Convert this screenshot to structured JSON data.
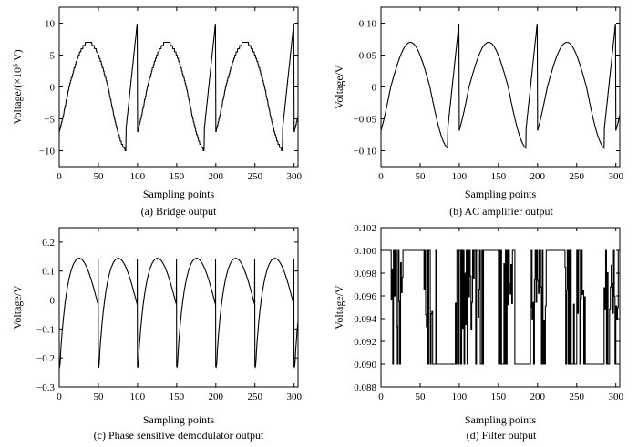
{
  "chart_data": [
    {
      "id": "a",
      "type": "line",
      "caption": "(a) Bridge output",
      "xlabel": "Sampling points",
      "ylabel": "Voltage/(×10⁵ V)",
      "xlim": [
        0,
        305
      ],
      "ylim": [
        -12.5,
        12.5
      ],
      "xticks": [
        0,
        50,
        100,
        150,
        200,
        250,
        300
      ],
      "yticks": [
        -10,
        -5,
        0,
        5,
        10
      ],
      "ytick_labels": [
        "−10",
        "−5",
        "0",
        "5",
        "10"
      ],
      "signal": {
        "shape": "ramp-sine",
        "amplitude": 7.0,
        "period": 100,
        "phase_deg": -45,
        "peak_after_reset": 10.5,
        "reset_to": -5,
        "clip": 10,
        "plateau_step": 0.5
      },
      "series": [
        {
          "values_desc": "sinusoid with plateaus at ±7/±10 and sharp resets at 100 and 200"
        }
      ]
    },
    {
      "id": "b",
      "type": "line",
      "caption": "(b) AC amplifier output",
      "xlabel": "Sampling points",
      "ylabel": "Voltage/V",
      "xlim": [
        0,
        305
      ],
      "ylim": [
        -0.125,
        0.125
      ],
      "xticks": [
        0,
        50,
        100,
        150,
        200,
        250,
        300
      ],
      "yticks": [
        -0.1,
        -0.05,
        0,
        0.05,
        0.1
      ],
      "ytick_labels": [
        "−0.10",
        "−0.05",
        "0",
        "0.05",
        "0.10"
      ],
      "signal": {
        "shape": "ramp-sine",
        "amplitude": 0.07,
        "trough": -0.097,
        "period": 100,
        "phase_deg": -45,
        "peak_after_reset": 0.105,
        "reset_to": -0.05
      },
      "series": [
        {
          "values_desc": "smooth sinusoid with resets at 100 and 200"
        }
      ]
    },
    {
      "id": "c",
      "type": "line",
      "caption": "(c) Phase sensitive demodulator output",
      "xlabel": "Sampling points",
      "ylabel": "Voltage/V",
      "xlim": [
        0,
        305
      ],
      "ylim": [
        -0.3,
        0.25
      ],
      "xticks": [
        0,
        50,
        100,
        150,
        200,
        250,
        300
      ],
      "yticks": [
        -0.3,
        -0.2,
        -0.1,
        0,
        0.1,
        0.2
      ],
      "ytick_labels": [
        "−0.3",
        "−0.2",
        "−0.1",
        "0",
        "0.1",
        "0.2"
      ],
      "signal": {
        "shape": "rectified",
        "peak": 0.165,
        "period": 50,
        "trough": -0.23,
        "spike": 0.14
      },
      "series": [
        {
          "values_desc": "rectified arcs peaking ~0.165 every 50 samples, dips to ~−0.23"
        }
      ]
    },
    {
      "id": "d",
      "type": "line",
      "caption": "(d) Filter output",
      "xlabel": "Sampling points",
      "ylabel": "Voltage/V",
      "xlim": [
        0,
        305
      ],
      "ylim": [
        0.088,
        0.102
      ],
      "xticks": [
        0,
        50,
        100,
        150,
        200,
        250,
        300
      ],
      "yticks": [
        0.088,
        0.09,
        0.092,
        0.094,
        0.096,
        0.098,
        0.1,
        0.102
      ],
      "ytick_labels": [
        "0.088",
        "0.090",
        "0.092",
        "0.094",
        "0.096",
        "0.098",
        "0.100",
        "0.102"
      ],
      "signal": {
        "shape": "binary",
        "high": 0.1,
        "low": 0.09,
        "bursts": [
          [
            12,
            30
          ],
          [
            55,
            70
          ],
          [
            95,
            130
          ],
          [
            150,
            170
          ],
          [
            190,
            210
          ],
          [
            235,
            260
          ],
          [
            285,
            305
          ]
        ]
      },
      "series": [
        {
          "values_desc": "toggles between 0.090 and 0.100 with dense bursts"
        }
      ]
    }
  ]
}
